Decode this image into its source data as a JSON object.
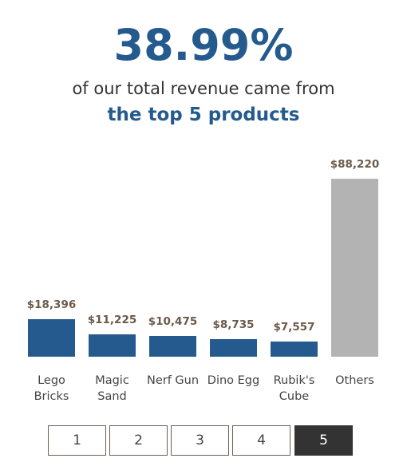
{
  "chart_data": {
    "type": "bar",
    "headline": "38.99%",
    "subtitle": "of our total revenue came from",
    "subtitle_emphasis": "the top 5 products",
    "categories": [
      "Lego Bricks",
      "Magic Sand",
      "Nerf Gun",
      "Dino Egg",
      "Rubik's Cube",
      "Others"
    ],
    "values": [
      18396,
      11225,
      10475,
      8735,
      7557,
      88220
    ],
    "value_labels": [
      "$18,396",
      "$11,225",
      "$10,475",
      "$8,735",
      "$7,557",
      "$88,220"
    ],
    "colors": [
      "#255a8e",
      "#255a8e",
      "#255a8e",
      "#255a8e",
      "#255a8e",
      "#b3b3b3"
    ]
  },
  "pagination": {
    "pages": [
      1,
      2,
      3,
      4,
      5
    ],
    "current_page": 5
  }
}
